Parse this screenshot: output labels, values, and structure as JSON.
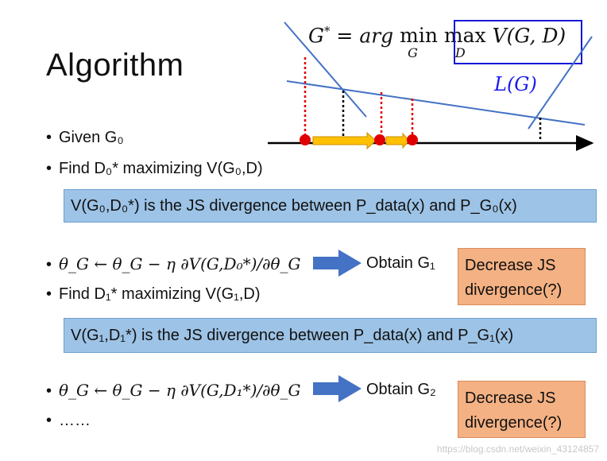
{
  "title": "Algorithm",
  "objective_formula": "G* = arg min_G max_D V(G,D)",
  "loss_label": "L(G)",
  "bullets_group1": [
    "Given G₀",
    "Find D₀* maximizing V(G₀,D)"
  ],
  "bar1": "V(G₀,D₀*) is the JS divergence between P_data(x) and P_G₀(x)",
  "step1": {
    "update": "θ_G ← θ_G − η ∂V(G,D₀*)/∂θ_G",
    "obtain": "Obtain G₁",
    "next": "Find D₁* maximizing V(G₁,D)",
    "note": "Decrease JS divergence(?)"
  },
  "bar2": "V(G₁,D₁*) is the JS divergence between P_data(x) and P_G₁(x)",
  "step2": {
    "update": "θ_G ← θ_G − η ∂V(G,D₁*)/∂θ_G",
    "obtain": "Obtain G₂",
    "ellipsis": "……",
    "note": "Decrease JS divergence(?)"
  },
  "watermark": "https://blog.csdn.net/weixin_43124857",
  "colors": {
    "box_blue": "#1616d6",
    "line_blue": "#4472c4",
    "bar_fill": "#9dc3e6",
    "note_fill": "#f4b183",
    "arrow": "#4472c4",
    "red_dot": "#e00000",
    "gold_arrow": "#ffc000"
  }
}
